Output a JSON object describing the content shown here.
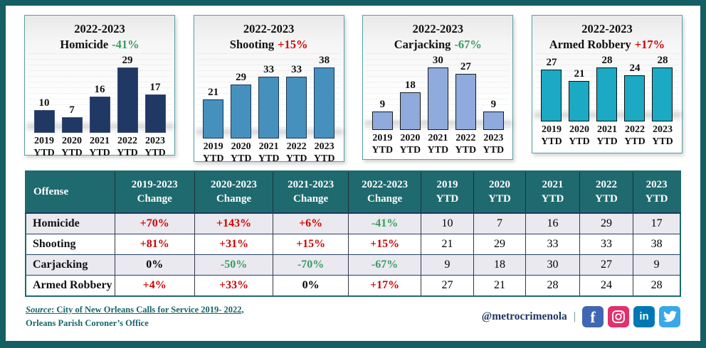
{
  "palette": {
    "frame_border": "#155E63",
    "chart_box_border": "#57A0A6",
    "table_header": "#1F6A6E",
    "grid_navy": "#1F3864",
    "increase_red": "#D10000",
    "decrease_green": "#3D9A62",
    "stripe_row": "#E9E9EF"
  },
  "chart_data": [
    {
      "type": "bar",
      "title": "2022-2023",
      "series_label": "Homicide",
      "change": "-41%",
      "trend": "down",
      "bar_color": "#1F3864",
      "bar_border": "#3A4E78",
      "categories": [
        "2019 YTD",
        "2020 YTD",
        "2021 YTD",
        "2022 YTD",
        "2023 YTD"
      ],
      "years": [
        "2019",
        "2020",
        "2021",
        "2022",
        "2023"
      ],
      "ytd_suffix": "YTD",
      "values": [
        10,
        7,
        16,
        29,
        17
      ],
      "ylim": [
        0,
        29
      ]
    },
    {
      "type": "bar",
      "title": "2022-2023",
      "series_label": "Shooting",
      "change": "+15%",
      "trend": "up",
      "bar_color": "#4690BE",
      "bar_border": "#17365D",
      "categories": [
        "2019 YTD",
        "2020 YTD",
        "2021 YTD",
        "2022 YTD",
        "2023 YTD"
      ],
      "years": [
        "2019",
        "2020",
        "2021",
        "2022",
        "2023"
      ],
      "ytd_suffix": "YTD",
      "values": [
        21,
        29,
        33,
        33,
        38
      ],
      "ylim": [
        0,
        38
      ]
    },
    {
      "type": "bar",
      "title": "2022-2023",
      "series_label": "Carjacking",
      "change": "-67%",
      "trend": "down",
      "bar_color": "#8FAADC",
      "bar_border": "#1a1a1a",
      "categories": [
        "2019 YTD",
        "2020 YTD",
        "2021 YTD",
        "2022 YTD",
        "2023 YTD"
      ],
      "years": [
        "2019",
        "2020",
        "2021",
        "2022",
        "2023"
      ],
      "ytd_suffix": "YTD",
      "values": [
        9,
        18,
        30,
        27,
        9
      ],
      "ylim": [
        0,
        30
      ]
    },
    {
      "type": "bar",
      "title": "2022-2023",
      "series_label": "Armed Robbery",
      "change": "+17%",
      "trend": "up",
      "bar_color": "#1BA9C4",
      "bar_border": "#111111",
      "categories": [
        "2019 YTD",
        "2020 YTD",
        "2021 YTD",
        "2022 YTD",
        "2023 YTD"
      ],
      "years": [
        "2019",
        "2020",
        "2021",
        "2022",
        "2023"
      ],
      "ytd_suffix": "YTD",
      "values": [
        27,
        21,
        28,
        24,
        28
      ],
      "ylim": [
        0,
        28
      ]
    },
    {
      "type": "table",
      "columns": [
        {
          "line1": "Offense",
          "line2": ""
        },
        {
          "line1": "2019-2023",
          "line2": "Change"
        },
        {
          "line1": "2020-2023",
          "line2": "Change"
        },
        {
          "line1": "2021-2023",
          "line2": "Change"
        },
        {
          "line1": "2022-2023",
          "line2": "Change"
        },
        {
          "line1": "2019",
          "line2": "YTD"
        },
        {
          "line1": "2020",
          "line2": "YTD"
        },
        {
          "line1": "2021",
          "line2": "YTD"
        },
        {
          "line1": "2022",
          "line2": "YTD"
        },
        {
          "line1": "2023",
          "line2": "YTD"
        }
      ],
      "rows": [
        {
          "offense": "Homicide",
          "changes": [
            "+70%",
            "+143%",
            "+6%",
            "-41%"
          ],
          "trends": [
            "up",
            "up",
            "up",
            "down"
          ],
          "ytd": [
            10,
            7,
            16,
            29,
            17
          ]
        },
        {
          "offense": "Shooting",
          "changes": [
            "+81%",
            "+31%",
            "+15%",
            "+15%"
          ],
          "trends": [
            "up",
            "up",
            "up",
            "up"
          ],
          "ytd": [
            21,
            29,
            33,
            33,
            38
          ]
        },
        {
          "offense": "Carjacking",
          "changes": [
            "0%",
            "-50%",
            "-70%",
            "-67%"
          ],
          "trends": [
            "flat",
            "down",
            "down",
            "down"
          ],
          "ytd": [
            9,
            18,
            30,
            27,
            9
          ]
        },
        {
          "offense": "Armed Robbery",
          "changes": [
            "+4%",
            "+33%",
            "0%",
            "+17%"
          ],
          "trends": [
            "up",
            "up",
            "flat",
            "up"
          ],
          "ytd": [
            27,
            21,
            28,
            24,
            28
          ]
        }
      ]
    }
  ],
  "footer": {
    "source_word": "Source",
    "source_line1_rest": ": City of New Orleans Calls for Service 2019- 2022,",
    "source_line2": "Orleans Parish Coroner’s Office",
    "handle": "@metrocrimenola",
    "separator": "|"
  },
  "social": [
    {
      "name": "facebook",
      "color": "#4267B2"
    },
    {
      "name": "instagram",
      "color": "#E1306C"
    },
    {
      "name": "linkedin",
      "color": "#0077B5"
    },
    {
      "name": "twitter",
      "color": "#38A8E8"
    }
  ]
}
